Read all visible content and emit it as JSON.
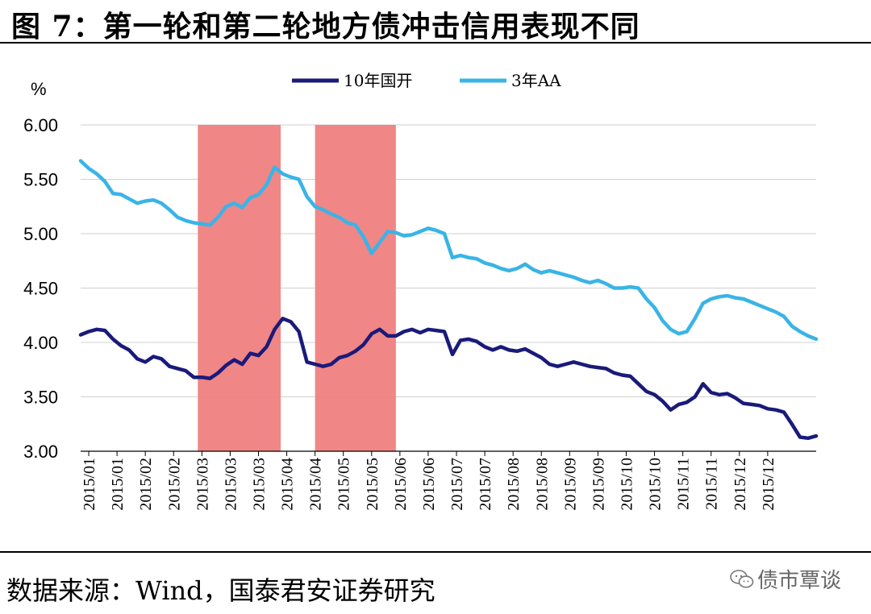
{
  "title": "图 7：第一轮和第二轮地方债冲击信用表现不同",
  "source": "数据来源：Wind，国泰君安证券研究",
  "watermark": "债市覃谈",
  "chart_data": {
    "type": "line",
    "ylabel": "%",
    "ylim": [
      3.0,
      6.0
    ],
    "yticks": [
      "3.00",
      "3.50",
      "4.00",
      "4.50",
      "5.00",
      "5.50",
      "6.00"
    ],
    "ytick_values": [
      3.0,
      3.5,
      4.0,
      4.5,
      5.0,
      5.5,
      6.0
    ],
    "xlim": [
      "2015-01-01",
      "2015-12-31"
    ],
    "xtick_labels": [
      "2015/01",
      "2015/01",
      "2015/02",
      "2015/02",
      "2015/03",
      "2015/03",
      "2015/03",
      "2015/04",
      "2015/04",
      "2015/05",
      "2015/05",
      "2015/06",
      "2015/06",
      "2015/07",
      "2015/07",
      "2015/08",
      "2015/08",
      "2015/09",
      "2015/09",
      "2015/10",
      "2015/10",
      "2015/11",
      "2015/11",
      "2015/12",
      "2015/12"
    ],
    "xtick_dates": [
      "2015-01-05",
      "2015-01-19",
      "2015-02-02",
      "2015-02-16",
      "2015-03-02",
      "2015-03-16",
      "2015-03-30",
      "2015-04-13",
      "2015-04-27",
      "2015-05-11",
      "2015-05-25",
      "2015-06-08",
      "2015-06-22",
      "2015-07-06",
      "2015-07-20",
      "2015-08-03",
      "2015-08-17",
      "2015-08-31",
      "2015-09-14",
      "2015-09-28",
      "2015-10-12",
      "2015-10-26",
      "2015-11-09",
      "2015-11-23",
      "2015-12-07"
    ],
    "legend_position": "top-center",
    "shaded_periods": [
      {
        "start": "2015-02-28",
        "end": "2015-04-10",
        "color": "#f08080"
      },
      {
        "start": "2015-04-27",
        "end": "2015-06-06",
        "color": "#f08080"
      }
    ],
    "series": [
      {
        "name": "10年国开",
        "color": "#1a1a7a",
        "points": [
          [
            "2015-01-01",
            4.07
          ],
          [
            "2015-01-05",
            4.1
          ],
          [
            "2015-01-09",
            4.12
          ],
          [
            "2015-01-13",
            4.11
          ],
          [
            "2015-01-17",
            4.03
          ],
          [
            "2015-01-21",
            3.97
          ],
          [
            "2015-01-25",
            3.93
          ],
          [
            "2015-01-29",
            3.85
          ],
          [
            "2015-02-02",
            3.82
          ],
          [
            "2015-02-06",
            3.87
          ],
          [
            "2015-02-10",
            3.85
          ],
          [
            "2015-02-14",
            3.78
          ],
          [
            "2015-02-18",
            3.76
          ],
          [
            "2015-02-22",
            3.74
          ],
          [
            "2015-02-26",
            3.68
          ],
          [
            "2015-03-02",
            3.68
          ],
          [
            "2015-03-06",
            3.67
          ],
          [
            "2015-03-10",
            3.72
          ],
          [
            "2015-03-14",
            3.79
          ],
          [
            "2015-03-18",
            3.84
          ],
          [
            "2015-03-22",
            3.8
          ],
          [
            "2015-03-26",
            3.9
          ],
          [
            "2015-03-30",
            3.88
          ],
          [
            "2015-04-03",
            3.96
          ],
          [
            "2015-04-07",
            4.12
          ],
          [
            "2015-04-11",
            4.22
          ],
          [
            "2015-04-15",
            4.19
          ],
          [
            "2015-04-19",
            4.1
          ],
          [
            "2015-04-23",
            3.82
          ],
          [
            "2015-04-27",
            3.8
          ],
          [
            "2015-05-01",
            3.78
          ],
          [
            "2015-05-05",
            3.8
          ],
          [
            "2015-05-09",
            3.86
          ],
          [
            "2015-05-13",
            3.88
          ],
          [
            "2015-05-17",
            3.92
          ],
          [
            "2015-05-21",
            3.98
          ],
          [
            "2015-05-25",
            4.08
          ],
          [
            "2015-05-29",
            4.12
          ],
          [
            "2015-06-02",
            4.06
          ],
          [
            "2015-06-06",
            4.06
          ],
          [
            "2015-06-10",
            4.1
          ],
          [
            "2015-06-14",
            4.12
          ],
          [
            "2015-06-18",
            4.09
          ],
          [
            "2015-06-22",
            4.12
          ],
          [
            "2015-06-26",
            4.11
          ],
          [
            "2015-06-30",
            4.1
          ],
          [
            "2015-07-04",
            3.89
          ],
          [
            "2015-07-08",
            4.02
          ],
          [
            "2015-07-12",
            4.03
          ],
          [
            "2015-07-16",
            4.01
          ],
          [
            "2015-07-20",
            3.96
          ],
          [
            "2015-07-24",
            3.93
          ],
          [
            "2015-07-28",
            3.96
          ],
          [
            "2015-08-01",
            3.93
          ],
          [
            "2015-08-05",
            3.92
          ],
          [
            "2015-08-09",
            3.94
          ],
          [
            "2015-08-13",
            3.9
          ],
          [
            "2015-08-17",
            3.86
          ],
          [
            "2015-08-21",
            3.8
          ],
          [
            "2015-08-25",
            3.78
          ],
          [
            "2015-08-29",
            3.8
          ],
          [
            "2015-09-02",
            3.82
          ],
          [
            "2015-09-06",
            3.8
          ],
          [
            "2015-09-10",
            3.78
          ],
          [
            "2015-09-14",
            3.77
          ],
          [
            "2015-09-18",
            3.76
          ],
          [
            "2015-09-22",
            3.72
          ],
          [
            "2015-09-26",
            3.7
          ],
          [
            "2015-09-30",
            3.69
          ],
          [
            "2015-10-04",
            3.62
          ],
          [
            "2015-10-08",
            3.55
          ],
          [
            "2015-10-12",
            3.52
          ],
          [
            "2015-10-16",
            3.46
          ],
          [
            "2015-10-20",
            3.38
          ],
          [
            "2015-10-24",
            3.43
          ],
          [
            "2015-10-28",
            3.45
          ],
          [
            "2015-11-01",
            3.5
          ],
          [
            "2015-11-05",
            3.62
          ],
          [
            "2015-11-09",
            3.54
          ],
          [
            "2015-11-13",
            3.52
          ],
          [
            "2015-11-17",
            3.53
          ],
          [
            "2015-11-21",
            3.49
          ],
          [
            "2015-11-25",
            3.44
          ],
          [
            "2015-11-29",
            3.43
          ],
          [
            "2015-12-03",
            3.42
          ],
          [
            "2015-12-07",
            3.39
          ],
          [
            "2015-12-11",
            3.38
          ],
          [
            "2015-12-15",
            3.36
          ],
          [
            "2015-12-19",
            3.25
          ],
          [
            "2015-12-23",
            3.13
          ],
          [
            "2015-12-27",
            3.12
          ],
          [
            "2015-12-31",
            3.14
          ]
        ]
      },
      {
        "name": "3年AA",
        "color": "#3ab4e6",
        "points": [
          [
            "2015-01-01",
            5.67
          ],
          [
            "2015-01-05",
            5.6
          ],
          [
            "2015-01-09",
            5.55
          ],
          [
            "2015-01-13",
            5.48
          ],
          [
            "2015-01-17",
            5.37
          ],
          [
            "2015-01-21",
            5.36
          ],
          [
            "2015-01-25",
            5.32
          ],
          [
            "2015-01-29",
            5.28
          ],
          [
            "2015-02-02",
            5.3
          ],
          [
            "2015-02-06",
            5.31
          ],
          [
            "2015-02-10",
            5.28
          ],
          [
            "2015-02-14",
            5.22
          ],
          [
            "2015-02-18",
            5.15
          ],
          [
            "2015-02-22",
            5.12
          ],
          [
            "2015-02-26",
            5.1
          ],
          [
            "2015-03-02",
            5.09
          ],
          [
            "2015-03-06",
            5.08
          ],
          [
            "2015-03-10",
            5.15
          ],
          [
            "2015-03-14",
            5.25
          ],
          [
            "2015-03-18",
            5.28
          ],
          [
            "2015-03-22",
            5.24
          ],
          [
            "2015-03-26",
            5.33
          ],
          [
            "2015-03-30",
            5.36
          ],
          [
            "2015-04-03",
            5.45
          ],
          [
            "2015-04-07",
            5.61
          ],
          [
            "2015-04-11",
            5.55
          ],
          [
            "2015-04-15",
            5.52
          ],
          [
            "2015-04-19",
            5.5
          ],
          [
            "2015-04-23",
            5.34
          ],
          [
            "2015-04-27",
            5.25
          ],
          [
            "2015-05-01",
            5.22
          ],
          [
            "2015-05-05",
            5.18
          ],
          [
            "2015-05-09",
            5.15
          ],
          [
            "2015-05-13",
            5.1
          ],
          [
            "2015-05-17",
            5.08
          ],
          [
            "2015-05-21",
            4.97
          ],
          [
            "2015-05-25",
            4.82
          ],
          [
            "2015-05-29",
            4.92
          ],
          [
            "2015-06-02",
            5.02
          ],
          [
            "2015-06-06",
            5.01
          ],
          [
            "2015-06-10",
            4.98
          ],
          [
            "2015-06-14",
            4.99
          ],
          [
            "2015-06-18",
            5.02
          ],
          [
            "2015-06-22",
            5.05
          ],
          [
            "2015-06-26",
            5.03
          ],
          [
            "2015-06-30",
            5.0
          ],
          [
            "2015-07-04",
            4.78
          ],
          [
            "2015-07-08",
            4.8
          ],
          [
            "2015-07-12",
            4.78
          ],
          [
            "2015-07-16",
            4.77
          ],
          [
            "2015-07-20",
            4.73
          ],
          [
            "2015-07-24",
            4.71
          ],
          [
            "2015-07-28",
            4.68
          ],
          [
            "2015-08-01",
            4.66
          ],
          [
            "2015-08-05",
            4.68
          ],
          [
            "2015-08-09",
            4.72
          ],
          [
            "2015-08-13",
            4.67
          ],
          [
            "2015-08-17",
            4.64
          ],
          [
            "2015-08-21",
            4.66
          ],
          [
            "2015-08-25",
            4.64
          ],
          [
            "2015-08-29",
            4.62
          ],
          [
            "2015-09-02",
            4.6
          ],
          [
            "2015-09-06",
            4.57
          ],
          [
            "2015-09-10",
            4.55
          ],
          [
            "2015-09-14",
            4.57
          ],
          [
            "2015-09-18",
            4.54
          ],
          [
            "2015-09-22",
            4.5
          ],
          [
            "2015-09-26",
            4.5
          ],
          [
            "2015-09-30",
            4.51
          ],
          [
            "2015-10-04",
            4.5
          ],
          [
            "2015-10-08",
            4.4
          ],
          [
            "2015-10-12",
            4.32
          ],
          [
            "2015-10-16",
            4.2
          ],
          [
            "2015-10-20",
            4.12
          ],
          [
            "2015-10-24",
            4.08
          ],
          [
            "2015-10-28",
            4.1
          ],
          [
            "2015-11-01",
            4.22
          ],
          [
            "2015-11-05",
            4.36
          ],
          [
            "2015-11-09",
            4.4
          ],
          [
            "2015-11-13",
            4.42
          ],
          [
            "2015-11-17",
            4.43
          ],
          [
            "2015-11-21",
            4.41
          ],
          [
            "2015-11-25",
            4.4
          ],
          [
            "2015-11-29",
            4.37
          ],
          [
            "2015-12-03",
            4.34
          ],
          [
            "2015-12-07",
            4.31
          ],
          [
            "2015-12-11",
            4.28
          ],
          [
            "2015-12-15",
            4.24
          ],
          [
            "2015-12-19",
            4.15
          ],
          [
            "2015-12-23",
            4.1
          ],
          [
            "2015-12-27",
            4.06
          ],
          [
            "2015-12-31",
            4.03
          ]
        ]
      }
    ]
  }
}
